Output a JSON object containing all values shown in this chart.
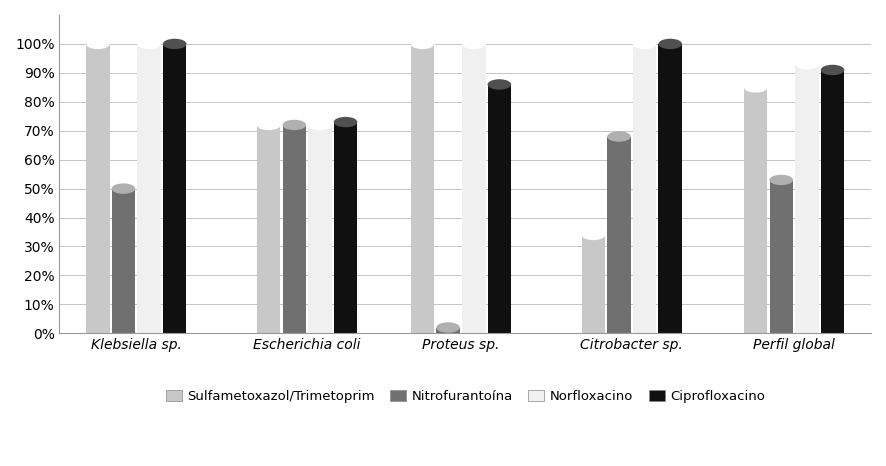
{
  "categories": [
    "Klebsiella sp.",
    "Escherichia coli",
    "Proteus sp.",
    "Citrobacter sp.",
    "Perfil global"
  ],
  "series": [
    {
      "label": "Sulfametoxazol/Trimetoprim",
      "color": "#c8c8c8",
      "values": [
        1.0,
        0.72,
        1.0,
        0.34,
        0.85
      ]
    },
    {
      "label": "Nitrofurantoína",
      "color": "#707070",
      "values": [
        0.5,
        0.72,
        0.02,
        0.68,
        0.53
      ]
    },
    {
      "label": "Norfloxacino",
      "color": "#f0f0f0",
      "values": [
        1.0,
        0.72,
        1.0,
        1.0,
        0.93
      ]
    },
    {
      "label": "Ciprofloxacino",
      "color": "#101010",
      "values": [
        1.0,
        0.73,
        0.86,
        1.0,
        0.91
      ]
    }
  ],
  "ylim": [
    0,
    1.1
  ],
  "yticks": [
    0.0,
    0.1,
    0.2,
    0.3,
    0.4,
    0.5,
    0.6,
    0.7,
    0.8,
    0.9,
    1.0
  ],
  "ytick_labels": [
    "0%",
    "10%",
    "20%",
    "30%",
    "40%",
    "50%",
    "60%",
    "70%",
    "80%",
    "90%",
    "100%"
  ],
  "background_color": "#ffffff",
  "grid_color": "#bbbbbb",
  "bar_width": 0.15,
  "figsize": [
    8.86,
    4.66
  ],
  "dpi": 100
}
